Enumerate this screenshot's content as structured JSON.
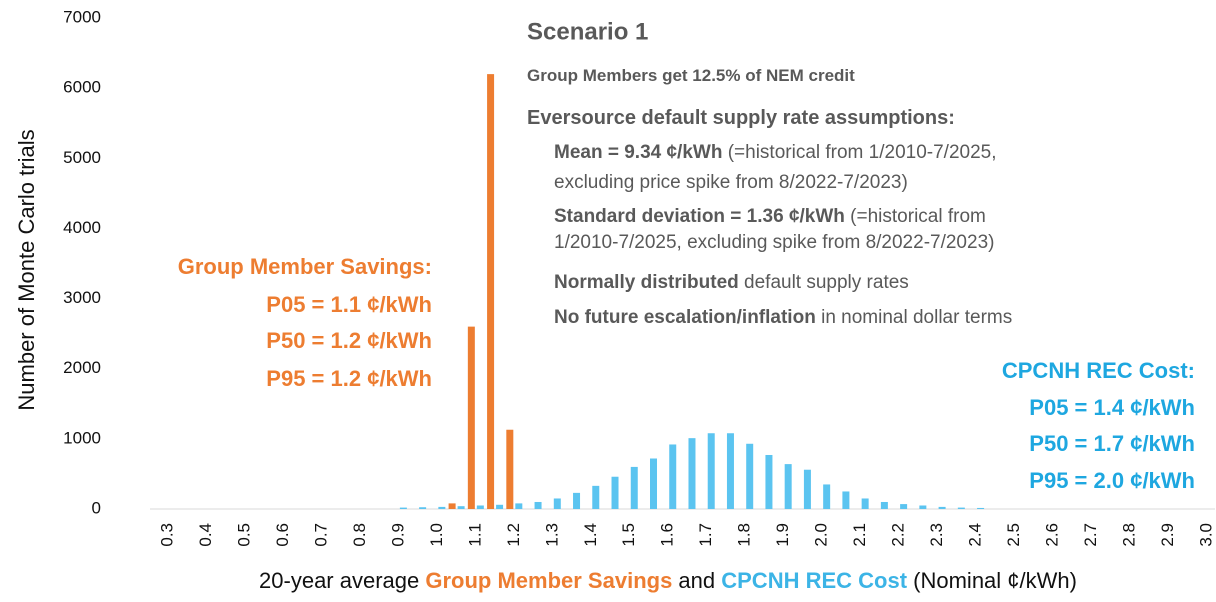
{
  "chart_data": {
    "type": "bar",
    "title": "Scenario 1",
    "y_label": "Number of Monte Carlo trials",
    "x_label": [
      {
        "text": "20-year average ",
        "color": "#111111"
      },
      {
        "text": "Group Member Savings",
        "color": "#ed7d31"
      },
      {
        "text": " and ",
        "color": "#111111"
      },
      {
        "text": "CPCNH REC Cost",
        "color": "#3cb4e6"
      },
      {
        "text": " (Nominal ¢/kWh)",
        "color": "#111111"
      }
    ],
    "notes": [
      {
        "bold": "Group Members get 12.5% of NEM credit",
        "rest": ""
      },
      {
        "bold": "Eversource default supply rate assumptions:",
        "rest": ""
      },
      {
        "bold": "Mean = 9.34 ¢/kWh",
        "rest": " (=historical from 1/2010-7/2025,"
      },
      {
        "bold": "",
        "rest": "excluding price spike from 8/2022-7/2023)"
      },
      {
        "bold": "Standard deviation = 1.36 ¢/kWh",
        "rest": " (=historical from"
      },
      {
        "bold": "",
        "rest": "1/2010-7/2025, excluding spike from 8/2022-7/2023)"
      },
      {
        "bold": "Normally distributed",
        "rest": " default supply rates"
      },
      {
        "bold": "No future escalation/inflation",
        "rest": " in nominal dollar terms"
      }
    ],
    "savings_box": [
      "Group Member Savings:",
      "P05 = 1.1 ¢/kWh",
      "P50 = 1.2 ¢/kWh",
      "P95 = 1.2 ¢/kWh"
    ],
    "cost_box": [
      "CPCNH REC Cost:",
      "P05 = 1.4 ¢/kWh",
      "P50 = 1.7 ¢/kWh",
      "P95 = 2.0 ¢/kWh"
    ],
    "categories": [
      "0.3",
      null,
      "0.4",
      null,
      "0.5",
      null,
      "0.6",
      null,
      "0.7",
      null,
      "0.8",
      null,
      "0.9",
      null,
      "1.0",
      null,
      "1.1",
      null,
      "1.2",
      null,
      "1.3",
      null,
      "1.4",
      null,
      "1.5",
      null,
      "1.6",
      null,
      "1.7",
      null,
      "1.8",
      null,
      "1.9",
      null,
      "2.0",
      null,
      "2.1",
      null,
      "2.2",
      null,
      "2.3",
      null,
      "2.4",
      null,
      "2.5",
      null,
      "2.6",
      null,
      "2.7",
      null,
      "2.8",
      null,
      "2.9",
      null,
      "3.0"
    ],
    "series": [
      {
        "name": "Group Member Savings",
        "color": "#ed7d31",
        "values": [
          0,
          0,
          0,
          0,
          0,
          0,
          0,
          0,
          0,
          0,
          0,
          0,
          0,
          0,
          0,
          80,
          2600,
          6200,
          1130,
          0,
          0,
          0,
          0,
          0,
          0,
          0,
          0,
          0,
          0,
          0,
          0,
          0,
          0,
          0,
          0,
          0,
          0,
          0,
          0,
          0,
          0,
          0,
          0,
          0,
          0,
          0,
          0,
          0,
          0,
          0,
          0,
          0,
          0,
          0,
          0
        ]
      },
      {
        "name": "CPCNH REC Cost",
        "color": "#5bc4f0",
        "values": [
          0,
          0,
          0,
          0,
          0,
          0,
          0,
          0,
          0,
          0,
          0,
          0,
          20,
          25,
          30,
          40,
          50,
          60,
          80,
          100,
          150,
          230,
          330,
          460,
          600,
          720,
          920,
          1010,
          1080,
          1080,
          930,
          770,
          640,
          560,
          350,
          250,
          150,
          100,
          70,
          50,
          30,
          20,
          15,
          0,
          0,
          0,
          0,
          0,
          0,
          0,
          0,
          0,
          0,
          0,
          0
        ]
      }
    ],
    "ylim": [
      0,
      7000
    ],
    "yticks": [
      0,
      1000,
      2000,
      3000,
      4000,
      5000,
      6000,
      7000
    ]
  }
}
